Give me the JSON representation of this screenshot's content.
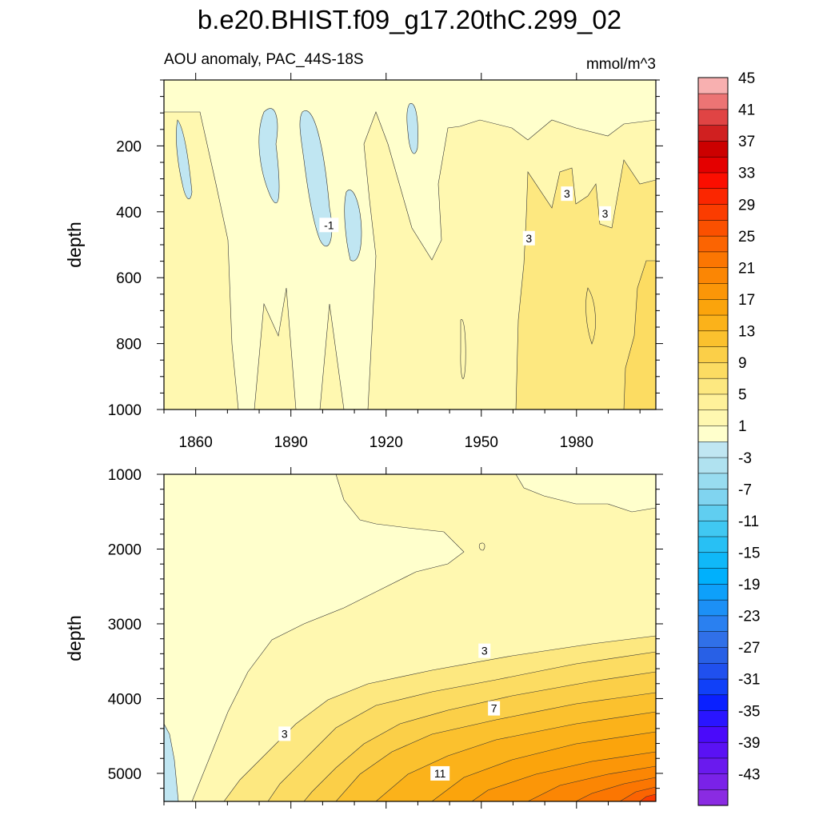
{
  "chart_data": {
    "type": "heatmap",
    "title": "b.e20.BHIST.f09_g17.20thC.299_02",
    "subtitle": "AOU anomaly, PAC_44S-18S",
    "units": "mmol/m^3",
    "xlim": [
      1850,
      2005
    ],
    "xticks": [
      1860,
      1890,
      1920,
      1950,
      1980
    ],
    "xtick_labels": [
      "1860",
      "1890",
      "1920",
      "1950",
      "1980"
    ],
    "upper_panel": {
      "ylabel": "depth",
      "ylim": [
        0,
        1000
      ],
      "yticks": [
        200,
        400,
        600,
        800,
        1000
      ],
      "ytick_labels": [
        "200",
        "400",
        "600",
        "800",
        "1000"
      ],
      "contour_labels": [
        {
          "text": "-1",
          "year": 1902,
          "depth": 440
        },
        {
          "text": "3",
          "year": 1965,
          "depth": 480
        },
        {
          "text": "3",
          "year": 1977,
          "depth": 345
        },
        {
          "text": "3",
          "year": 1989,
          "depth": 405
        }
      ]
    },
    "lower_panel": {
      "ylabel": "depth",
      "ylim": [
        1000,
        5375
      ],
      "yticks": [
        1000,
        2000,
        3000,
        4000,
        5000
      ],
      "ytick_labels": [
        "1000",
        "2000",
        "3000",
        "4000",
        "5000"
      ],
      "contour_labels": [
        {
          "text": "3",
          "year": 1951,
          "depth": 3360
        },
        {
          "text": "7",
          "year": 1954,
          "depth": 4130
        },
        {
          "text": "3",
          "year": 1888,
          "depth": 4470
        },
        {
          "text": "11",
          "year": 1937,
          "depth": 5000
        }
      ]
    },
    "colorbar": {
      "levels": [
        -45,
        -43,
        -41,
        -39,
        -37,
        -35,
        -33,
        -31,
        -29,
        -27,
        -25,
        -23,
        -21,
        -19,
        -17,
        -15,
        -13,
        -11,
        -9,
        -7,
        -5,
        -3,
        -1,
        1,
        3,
        5,
        7,
        9,
        11,
        13,
        15,
        17,
        19,
        21,
        23,
        25,
        27,
        29,
        31,
        33,
        35,
        37,
        39,
        41,
        43,
        45
      ],
      "labels": [
        "45",
        "41",
        "37",
        "33",
        "29",
        "25",
        "21",
        "17",
        "13",
        "9",
        "5",
        "1",
        "-3",
        "-7",
        "-11",
        "-15",
        "-19",
        "-23",
        "-27",
        "-31",
        "-35",
        "-39",
        "-43"
      ],
      "colors": [
        "#8a2be2",
        "#7a22e8",
        "#6a1aee",
        "#5a12f4",
        "#4a0afa",
        "#2a15ff",
        "#0a20ff",
        "#1040f8",
        "#2050ee",
        "#2860e6",
        "#3070e8",
        "#2a80f0",
        "#1c90f6",
        "#0ea0fa",
        "#00b0fc",
        "#10b8f8",
        "#28c0f4",
        "#40c8f2",
        "#60cef0",
        "#80d4f0",
        "#98dcf0",
        "#b0e2f0",
        "#c0e6f2",
        "#ffffcc",
        "#fff8b0",
        "#fff19a",
        "#fde880",
        "#fcdc62",
        "#fbcf48",
        "#fbc12e",
        "#fbb21a",
        "#fba40c",
        "#fb9608",
        "#fb8604",
        "#fb7602",
        "#fb6402",
        "#fb5000",
        "#fb3c00",
        "#fb2600",
        "#fb0e00",
        "#e40000",
        "#cc0000",
        "#d02020",
        "#e04444",
        "#ec7474",
        "#f8b0b0"
      ]
    }
  }
}
